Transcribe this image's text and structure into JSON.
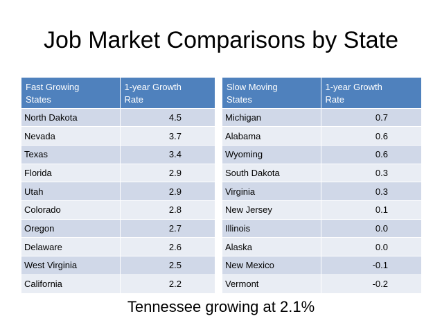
{
  "title": "Job Market Comparisons by State",
  "fast_table": {
    "headers": [
      "Fast Growing\nStates",
      "1-year Growth\nRate"
    ],
    "rows": [
      {
        "state": "North Dakota",
        "rate": "4.5"
      },
      {
        "state": "Nevada",
        "rate": "3.7"
      },
      {
        "state": "Texas",
        "rate": "3.4"
      },
      {
        "state": "Florida",
        "rate": "2.9"
      },
      {
        "state": "Utah",
        "rate": "2.9"
      },
      {
        "state": "Colorado",
        "rate": "2.8"
      },
      {
        "state": "Oregon",
        "rate": "2.7"
      },
      {
        "state": "Delaware",
        "rate": "2.6"
      },
      {
        "state": "West Virginia",
        "rate": "2.5"
      },
      {
        "state": "California",
        "rate": "2.2"
      }
    ]
  },
  "slow_table": {
    "headers": [
      "Slow Moving\nStates",
      "1-year Growth\nRate"
    ],
    "rows": [
      {
        "state": "Michigan",
        "rate": "0.7"
      },
      {
        "state": "Alabama",
        "rate": "0.6"
      },
      {
        "state": "Wyoming",
        "rate": "0.6"
      },
      {
        "state": "South Dakota",
        "rate": "0.3"
      },
      {
        "state": "Virginia",
        "rate": "0.3"
      },
      {
        "state": "New Jersey",
        "rate": "0.1"
      },
      {
        "state": "Illinois",
        "rate": "0.0"
      },
      {
        "state": "Alaska",
        "rate": "0.0"
      },
      {
        "state": "New Mexico",
        "rate": "-0.1"
      },
      {
        "state": "Vermont",
        "rate": "-0.2"
      }
    ]
  },
  "note": "Tennessee growing at 2.1%",
  "colors": {
    "header": "#4f81bd",
    "row_odd": "#d0d8e8",
    "row_even": "#e9edf4"
  }
}
